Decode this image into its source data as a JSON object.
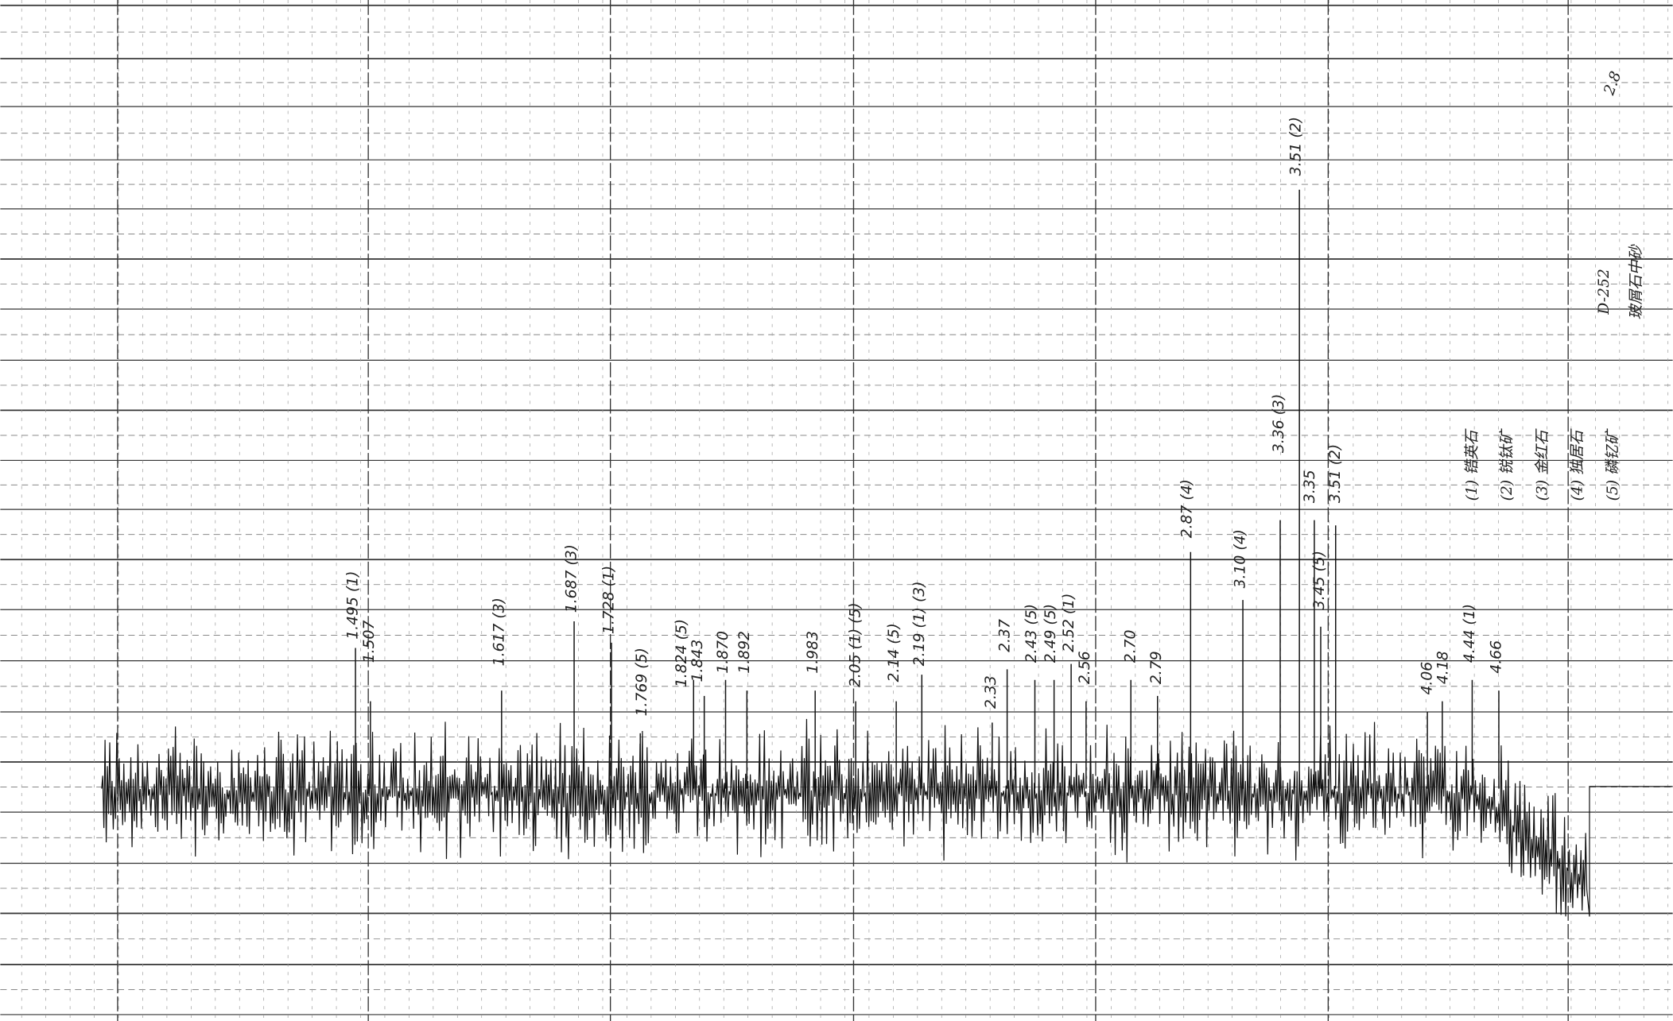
{
  "top_note": "2.8",
  "sample": {
    "id": "D-252",
    "description": "玻屑石中砂"
  },
  "peaks": [
    "1.495 (1)",
    "1.507",
    "1.617 (3)",
    "1.687 (3)",
    "1.728 (1)",
    "1.769 (5)",
    "1.824 (5)",
    "1.843",
    "1.870",
    "1.892",
    "1.983",
    "2.05 (1) (5)",
    "2.14 (5)",
    "2.19 (1) (3)",
    "2.33",
    "2.37",
    "2.43 (5)",
    "2.49 (5)",
    "2.52 (1)",
    "2.56",
    "2.70",
    "2.79",
    "2.87 (4)",
    "3.10 (4)",
    "3.36 (3)",
    "3.51 (2)",
    "3.35",
    "3.51 (2)",
    "3.45 (5)",
    "4.06",
    "4.18",
    "4.44 (1)",
    "4.66"
  ],
  "legend": [
    "(1) 锆英石",
    "(2) 锐钛矿",
    "(3) 金红石",
    "(4) 独居石",
    "(5) 磷钇矿"
  ]
}
